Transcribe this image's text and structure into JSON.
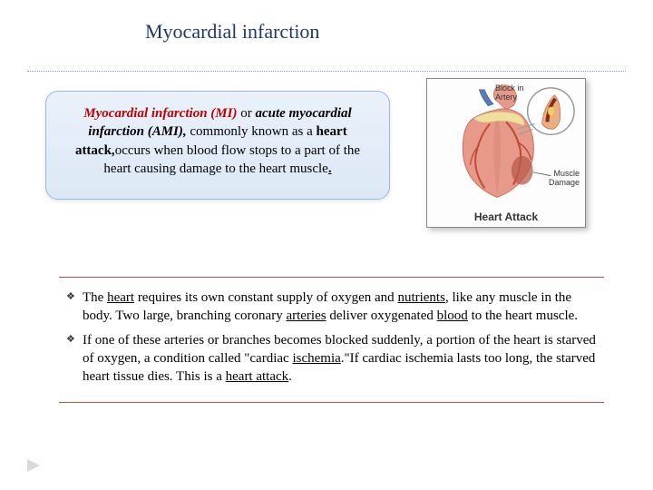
{
  "title": "Myocardial infarction",
  "definition": {
    "term1": "Myocardial infarction (MI)",
    "sep1": " or ",
    "term2": "acute myocardial infarction (AMI),",
    "sep2": " commonly known as a ",
    "term3": "heart attack,",
    "rest": "occurs when blood flow stops to a part of the heart causing damage to the heart muscle",
    "period": "."
  },
  "heart_image": {
    "label_block": "Block in\nArtery",
    "label_damage": "Muscle\nDamage",
    "caption": "Heart Attack",
    "colors": {
      "heart_fill": "#e89a8a",
      "heart_dark": "#c96f5f",
      "vein_blue": "#5b7cb0",
      "artery_red": "#c14a3a",
      "fat_yellow": "#f0e0a0",
      "damage": "#b85a4a",
      "border": "#888888",
      "zoom_ring": "#999999"
    }
  },
  "bullets": [
    {
      "parts": [
        {
          "t": "The "
        },
        {
          "t": "heart",
          "u": true
        },
        {
          "t": " requires its own constant supply of oxygen and "
        },
        {
          "t": "nutrients",
          "u": true
        },
        {
          "t": ", like any muscle in the body. Two large, branching coronary "
        },
        {
          "t": "arteries",
          "u": true
        },
        {
          "t": "  deliver oxygenated "
        },
        {
          "t": "blood",
          "u": true
        },
        {
          "t": " to the heart muscle."
        }
      ]
    },
    {
      "parts": [
        {
          "t": "If one of these arteries or branches becomes blocked suddenly, a portion of the heart is starved of oxygen, a condition called \"cardiac "
        },
        {
          "t": "ischemia",
          "u": true
        },
        {
          "t": ".\"If cardiac ischemia lasts too long, the starved heart tissue dies. This is a "
        },
        {
          "t": "heart attack",
          "u": true
        },
        {
          "t": "."
        }
      ]
    }
  ],
  "styling": {
    "title_color": "#1f3864",
    "title_fontsize": 22,
    "body_fontsize": 15,
    "def_bg_top": "#eaf1fa",
    "def_bg_bottom": "#dce8f6",
    "def_border": "#9cb8d8",
    "accent_red": "#c00000",
    "rule_color": "#c0504d",
    "dotted_color": "#8aa3c2",
    "page_bg": "#ffffff"
  }
}
